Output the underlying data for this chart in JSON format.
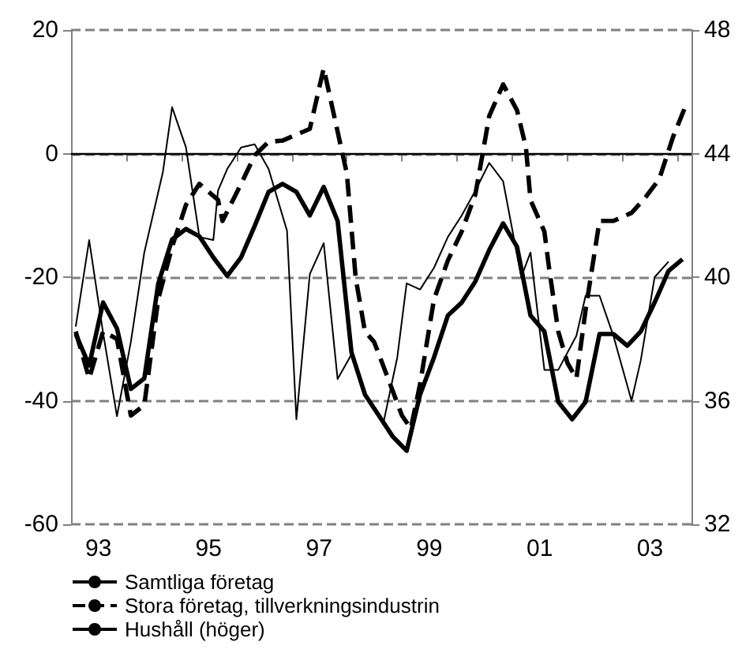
{
  "chart_data": {
    "type": "line",
    "xlim": [
      "1993-01",
      "2004-04"
    ],
    "xticks": [
      {
        "value": "1993-01",
        "label": null
      },
      {
        "value": "1993-07",
        "label": "93"
      },
      {
        "value": "1994-01",
        "label": null
      },
      {
        "value": "1995-01",
        "label": null
      },
      {
        "value": "1995-07",
        "label": "95"
      },
      {
        "value": "1996-01",
        "label": null
      },
      {
        "value": "1997-01",
        "label": null
      },
      {
        "value": "1997-07",
        "label": "97"
      },
      {
        "value": "1998-01",
        "label": null
      },
      {
        "value": "1999-01",
        "label": null
      },
      {
        "value": "1999-07",
        "label": "99"
      },
      {
        "value": "2000-01",
        "label": null
      },
      {
        "value": "2001-01",
        "label": null
      },
      {
        "value": "2001-07",
        "label": "01"
      },
      {
        "value": "2002-01",
        "label": null
      },
      {
        "value": "2003-01",
        "label": null
      },
      {
        "value": "2003-07",
        "label": "03"
      },
      {
        "value": "2004-01",
        "label": null
      }
    ],
    "ylim": [
      -60,
      20
    ],
    "yticks": [
      -60,
      -40,
      -20,
      0,
      20
    ],
    "y2lim": [
      32,
      48
    ],
    "y2ticks": [
      32,
      36,
      40,
      44,
      48
    ],
    "grid": "y",
    "legend": "bottom",
    "marker": "none",
    "ref_lines": [
      {
        "axis": "y",
        "value": 0,
        "color": "#000000",
        "line_style": "solid"
      }
    ],
    "series": [
      {
        "name": "Samtliga företag",
        "color": "#000000",
        "line_style": "solid",
        "x": [
          "1993-02",
          "1993-05",
          "1993-08",
          "1993-11",
          "1994-02",
          "1994-05",
          "1994-08",
          "1994-11",
          "1995-02",
          "1995-05",
          "1995-08",
          "1995-11",
          "1996-02",
          "1996-05",
          "1996-08",
          "1996-11",
          "1997-02",
          "1997-05",
          "1997-08",
          "1997-11",
          "1998-02",
          "1998-05",
          "1998-08",
          "1998-11",
          "1999-02",
          "1999-05",
          "1999-08",
          "1999-11",
          "2000-02",
          "2000-05",
          "2000-08",
          "2000-11",
          "2001-02",
          "2001-05",
          "2001-08",
          "2001-11",
          "2002-02",
          "2002-05",
          "2002-08",
          "2002-11",
          "2003-02",
          "2003-05",
          "2003-08",
          "2003-11",
          "2004-02"
        ],
        "values": [
          -29.2,
          -34.3,
          -24.1,
          -28.3,
          -38.1,
          -36.4,
          -21.1,
          -13.9,
          -12.2,
          -13.4,
          -16.8,
          -19.8,
          -16.8,
          -11.7,
          -6.2,
          -4.9,
          -6.2,
          -10,
          -5.4,
          -10.9,
          -32.2,
          -39,
          -42.4,
          -45.8,
          -48.1,
          -39,
          -33,
          -26.2,
          -24.1,
          -20.7,
          -15.6,
          -11.3,
          -15.1,
          -26.2,
          -28.8,
          -40.2,
          -43,
          -40.2,
          -29.2,
          -29.2,
          -31.1,
          -28.8,
          -24.1,
          -19,
          -17.1
        ]
      },
      {
        "name": "Stora företag, tillverkningsindustrin",
        "color": "#000000",
        "line_style": "dashed",
        "x": [
          "1993-02",
          "1993-05",
          "1993-08",
          "1993-11",
          "1994-02",
          "1994-05",
          "1994-08",
          "1994-11",
          "1995-02",
          "1995-05",
          "1995-09",
          "1995-10",
          "1996-02",
          "1996-05",
          "1996-08",
          "1996-11",
          "1997-05",
          "1997-08",
          "1997-10",
          "1998-01",
          "1998-03",
          "1998-05",
          "1998-07",
          "1998-10",
          "1999-01",
          "1999-03",
          "1999-05",
          "1999-08",
          "1999-11",
          "2000-02",
          "2000-05",
          "2000-06",
          "2000-08",
          "2000-11",
          "2001-02",
          "2001-04",
          "2001-05",
          "2001-08",
          "2001-09",
          "2001-11",
          "2002-01",
          "2002-03",
          "2002-05",
          "2002-08",
          "2002-11",
          "2003-03",
          "2003-06",
          "2003-09",
          "2003-12",
          "2004-03"
        ],
        "values": [
          -28.8,
          -36.4,
          -28.8,
          -30,
          -42.4,
          -40.7,
          -23.6,
          -15.1,
          -8.3,
          -4.9,
          -7.5,
          -10.9,
          -4.9,
          -0.3,
          1.9,
          2.1,
          4,
          13.8,
          7,
          -3.2,
          -20.2,
          -28.8,
          -30.5,
          -36.4,
          -42.4,
          -44.5,
          -37.3,
          -23.6,
          -17.3,
          -12.6,
          -6.6,
          -2.4,
          6.1,
          11.2,
          7,
          1,
          -7.5,
          -12.6,
          -18.5,
          -28.8,
          -33.9,
          -36.4,
          -25.3,
          -10.9,
          -10.9,
          -9.6,
          -7.1,
          -4.1,
          2.7,
          8.2
        ]
      },
      {
        "name": "Hushåll (höger)",
        "color": "#000000",
        "line_style": "solid",
        "axis": "y2",
        "x": [
          "1993-02",
          "1993-05",
          "1993-08",
          "1993-11",
          "1994-02",
          "1994-05",
          "1994-09",
          "1994-11",
          "1995-02",
          "1995-05",
          "1995-08",
          "1995-09",
          "1995-11",
          "1996-02",
          "1996-05",
          "1996-08",
          "1996-12",
          "1997-02",
          "1997-05",
          "1997-08",
          "1997-11",
          "1998-02",
          "1998-05",
          "1998-09",
          "1998-12",
          "1999-02",
          "1999-05",
          "1999-08",
          "1999-11",
          "2000-02",
          "2000-05",
          "2000-08",
          "2000-11",
          "2001-03",
          "2001-05",
          "2001-08",
          "2001-11",
          "2002-03",
          "2002-05",
          "2002-08",
          "2002-11",
          "2003-03",
          "2003-05",
          "2003-08",
          "2003-11"
        ],
        "values": [
          38.4,
          41.2,
          38.2,
          35.5,
          37.9,
          40.8,
          43.4,
          45.5,
          44.2,
          41.3,
          41.2,
          42.8,
          43.5,
          44.2,
          44.3,
          43.5,
          41.5,
          35.4,
          40.1,
          41.1,
          36.7,
          37.5,
          36.2,
          35.3,
          37.4,
          39.8,
          39.6,
          40.3,
          41.3,
          42,
          42.8,
          43.7,
          43.1,
          40,
          40.8,
          37,
          37,
          38.1,
          39.4,
          39.4,
          38.1,
          36,
          37.3,
          40,
          40.5
        ]
      }
    ]
  }
}
